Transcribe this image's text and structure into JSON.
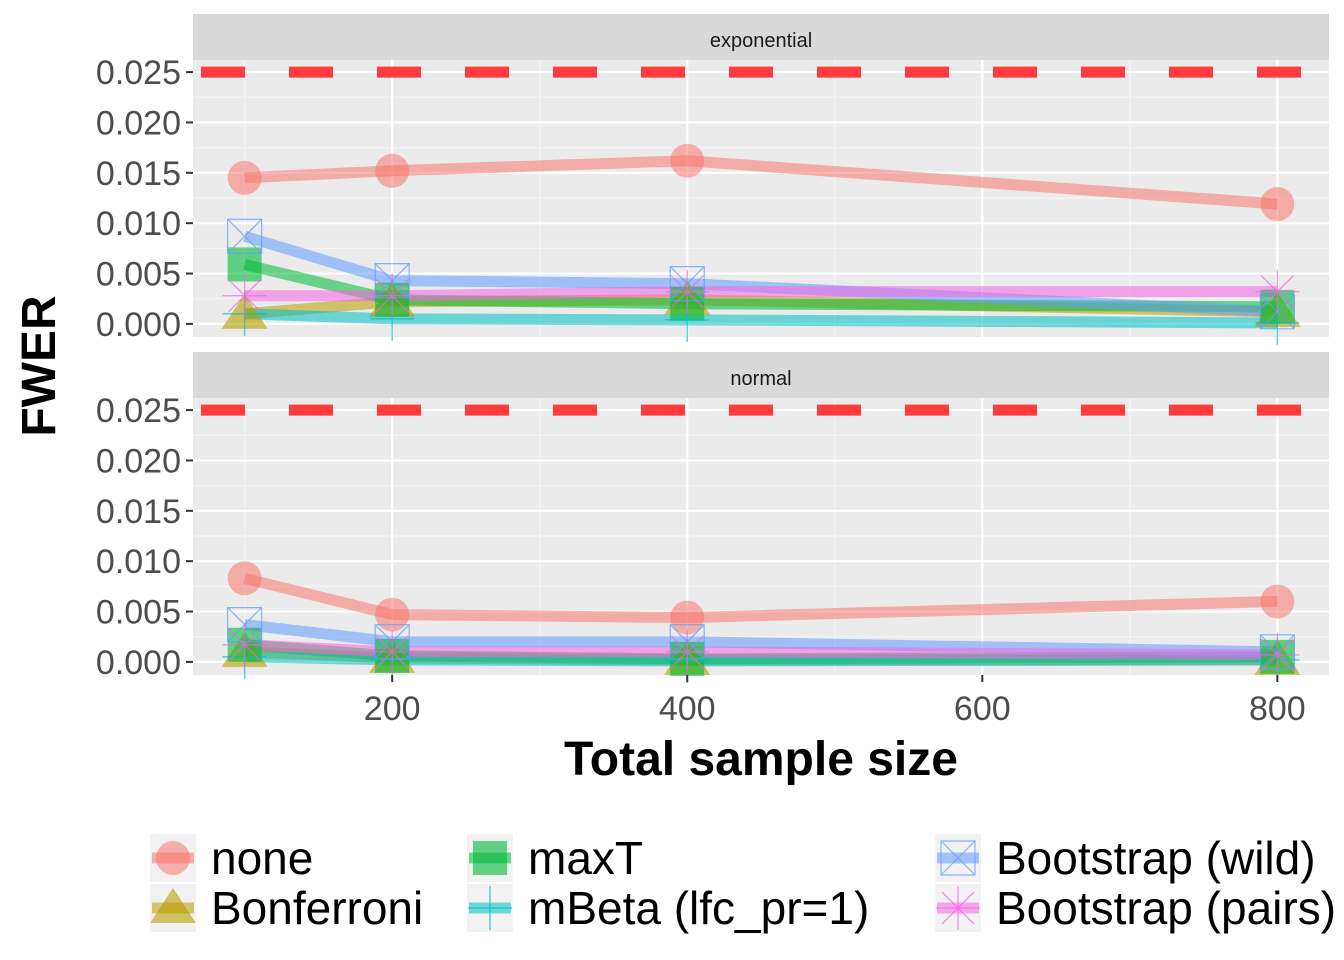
{
  "chart_data": {
    "type": "line",
    "facets": [
      "exponential",
      "normal"
    ],
    "xlabel": "Total sample size",
    "ylabel": "FWER",
    "x": [
      100,
      200,
      400,
      800
    ],
    "xticks": [
      200,
      400,
      600,
      800
    ],
    "xlim": [
      65,
      835
    ],
    "yticks": [
      "0.000",
      "0.005",
      "0.010",
      "0.015",
      "0.020",
      "0.025"
    ],
    "ylim": [
      -0.0013,
      0.0262
    ],
    "reference_line": {
      "y": 0.025,
      "style": "dashed",
      "color": "#FF3B3B"
    },
    "grid": true,
    "legend_position": "bottom",
    "series": [
      {
        "name": "none",
        "color": "#F8766D",
        "shape": "circle",
        "values": {
          "exponential": [
            0.0145,
            0.0152,
            0.0162,
            0.0119
          ],
          "normal": [
            0.0083,
            0.0047,
            0.0044,
            0.006
          ]
        }
      },
      {
        "name": "Bonferroni",
        "color": "#B79F00",
        "shape": "triangle",
        "values": {
          "exponential": [
            0.001,
            0.0022,
            0.0024,
            0.0012
          ],
          "normal": [
            0.001,
            0.0004,
            0.0002,
            0.0002
          ]
        }
      },
      {
        "name": "maxT",
        "color": "#00BA38",
        "shape": "square",
        "values": {
          "exponential": [
            0.0059,
            0.0024,
            0.002,
            0.0017
          ],
          "normal": [
            0.0017,
            0.0006,
            0.0003,
            0.0005
          ]
        }
      },
      {
        "name": "mBeta (lfc_pr=1)",
        "color": "#00BFC4",
        "shape": "plus",
        "values": {
          "exponential": [
            0.001,
            0.0005,
            0.0004,
            0.0001
          ],
          "normal": [
            0.0005,
            0.0002,
            0.0001,
            0.0002
          ]
        }
      },
      {
        "name": "Bootstrap (wild)",
        "color": "#619CFF",
        "shape": "boxx",
        "values": {
          "exponential": [
            0.0087,
            0.0043,
            0.004,
            0.0012
          ],
          "normal": [
            0.0037,
            0.002,
            0.002,
            0.001
          ]
        }
      },
      {
        "name": "Bootstrap (pairs)",
        "color": "#F564E3",
        "shape": "asterisk",
        "values": {
          "exponential": [
            0.0028,
            0.0028,
            0.0032,
            0.0032
          ],
          "normal": [
            0.0017,
            0.001,
            0.001,
            0.0007
          ]
        }
      }
    ]
  }
}
